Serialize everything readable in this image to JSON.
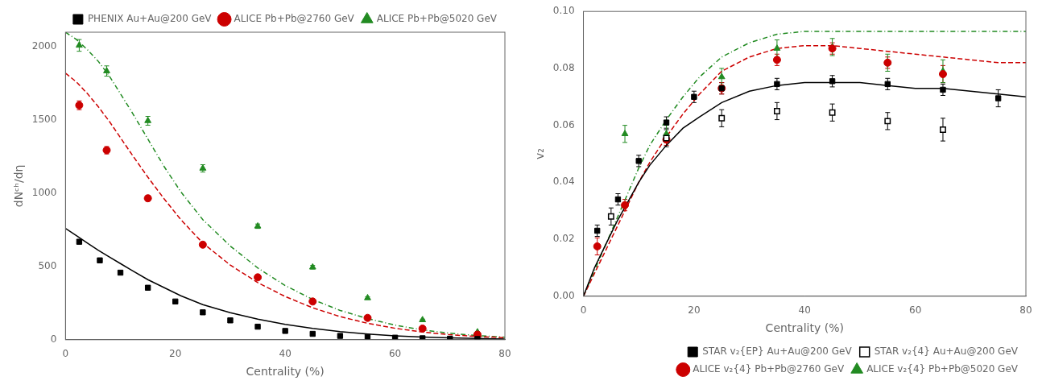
{
  "chart_data": [
    {
      "type": "scatter",
      "x_label": "Centrality (%)",
      "y_label": "dNᶜʰ/dη",
      "xlim": [
        0,
        80
      ],
      "xticks": [
        0,
        20,
        40,
        60,
        80
      ],
      "ylim": [
        0,
        2100
      ],
      "yticks": [
        0,
        500,
        1000,
        1500,
        2000
      ],
      "grid": false,
      "legend": "upper right",
      "series": [
        {
          "type": "line",
          "color": "#000000",
          "line_style": "solid",
          "x": [
            0,
            2,
            4,
            6,
            8,
            10,
            12,
            15,
            18,
            21,
            25,
            30,
            35,
            40,
            45,
            50,
            55,
            60,
            65,
            70,
            75,
            80
          ],
          "values": [
            760,
            710,
            660,
            610,
            565,
            520,
            475,
            410,
            355,
            300,
            240,
            185,
            140,
            105,
            77,
            55,
            39,
            27,
            18,
            12,
            8,
            5
          ]
        },
        {
          "type": "line",
          "color": "#cc0000",
          "line_style": "dashed",
          "x": [
            0,
            2,
            4,
            6,
            8,
            10,
            12,
            15,
            18,
            21,
            25,
            30,
            35,
            40,
            45,
            50,
            55,
            60,
            65,
            70,
            75,
            80
          ],
          "values": [
            1820,
            1760,
            1680,
            1590,
            1490,
            1380,
            1270,
            1110,
            960,
            820,
            660,
            510,
            390,
            295,
            218,
            158,
            112,
            78,
            52,
            34,
            22,
            14
          ]
        },
        {
          "type": "line",
          "color": "#228B22",
          "line_style": "dashdot",
          "x": [
            0,
            2,
            4,
            6,
            8,
            10,
            12,
            15,
            18,
            21,
            25,
            30,
            35,
            40,
            45,
            50,
            55,
            60,
            65,
            70,
            75,
            80
          ],
          "values": [
            2100,
            2050,
            1980,
            1900,
            1800,
            1680,
            1560,
            1370,
            1180,
            1010,
            820,
            640,
            490,
            370,
            275,
            200,
            144,
            100,
            67,
            44,
            28,
            17
          ]
        },
        {
          "type": "scatter",
          "name": "PHENIX Au+Au@200 GeV",
          "color": "#000000",
          "marker": "square",
          "x": [
            2.5,
            6.25,
            10,
            15,
            20,
            25,
            30,
            35,
            40,
            45,
            50,
            55,
            60,
            65,
            70,
            75
          ],
          "values": [
            669,
            542,
            458,
            355,
            261,
            187,
            132,
            89,
            60,
            40,
            26,
            19,
            14,
            10,
            7,
            5
          ],
          "errors": [
            15,
            12,
            10,
            8,
            6,
            5,
            4,
            3,
            2,
            2,
            1.5,
            1.5,
            1,
            1,
            1,
            1
          ]
        },
        {
          "type": "scatter",
          "name": "ALICE Pb+Pb@2760 GeV",
          "color": "#cc0000",
          "marker": "circle",
          "x": [
            2.5,
            7.5,
            15,
            25,
            35,
            45,
            55,
            65,
            75
          ],
          "values": [
            1601,
            1294,
            966,
            649,
            426,
            261,
            149,
            76,
            35
          ],
          "errors": [
            30,
            25,
            20,
            15,
            10,
            8,
            5,
            4,
            3
          ]
        },
        {
          "type": "scatter",
          "name": "ALICE Pb+Pb@5020 GeV",
          "color": "#228B22",
          "marker": "triangle",
          "x": [
            2.5,
            7.5,
            15,
            25,
            35,
            45,
            55,
            65,
            75
          ],
          "values": [
            2010,
            1835,
            1495,
            1170,
            775,
            495,
            285,
            135,
            52
          ],
          "errors": [
            40,
            35,
            30,
            25,
            15,
            12,
            8,
            5,
            3
          ]
        }
      ]
    },
    {
      "type": "scatter",
      "x_label": "Centrality (%)",
      "y_label": "v₂",
      "xlim": [
        0,
        80
      ],
      "xticks": [
        0,
        20,
        40,
        60,
        80
      ],
      "ylim": [
        0.0,
        0.1
      ],
      "yticks": [
        {
          "value": 0.0,
          "label": "0.00"
        },
        0.02,
        0.04,
        0.06,
        0.08,
        {
          "value": 0.1,
          "label": "0.10"
        }
      ],
      "grid": false,
      "legend": "lower right",
      "series": [
        {
          "type": "line",
          "color": "#000000",
          "line_style": "solid",
          "x": [
            0,
            2,
            4,
            6,
            8,
            10,
            12,
            15,
            18,
            21,
            25,
            30,
            35,
            40,
            45,
            50,
            55,
            60,
            65,
            70,
            75,
            80
          ],
          "values": [
            0.0,
            0.01,
            0.018,
            0.026,
            0.033,
            0.04,
            0.046,
            0.053,
            0.059,
            0.063,
            0.068,
            0.072,
            0.074,
            0.075,
            0.075,
            0.075,
            0.074,
            0.073,
            0.073,
            0.072,
            0.071,
            0.07
          ]
        },
        {
          "type": "line",
          "color": "#cc0000",
          "line_style": "dashed",
          "x": [
            0,
            2,
            4,
            6,
            8,
            10,
            12,
            15,
            18,
            21,
            25,
            30,
            35,
            40,
            45,
            50,
            55,
            60,
            65,
            70,
            75,
            80
          ],
          "values": [
            0.0,
            0.008,
            0.016,
            0.024,
            0.032,
            0.04,
            0.047,
            0.056,
            0.064,
            0.071,
            0.079,
            0.084,
            0.087,
            0.088,
            0.088,
            0.087,
            0.086,
            0.085,
            0.084,
            0.083,
            0.082,
            0.082
          ]
        },
        {
          "type": "line",
          "color": "#228B22",
          "line_style": "dashdot",
          "x": [
            0,
            2,
            4,
            6,
            8,
            10,
            12,
            15,
            18,
            21,
            25,
            30,
            35,
            40,
            45,
            50,
            55,
            60,
            65,
            70,
            75,
            80
          ],
          "values": [
            0.0,
            0.009,
            0.018,
            0.027,
            0.036,
            0.045,
            0.053,
            0.062,
            0.07,
            0.077,
            0.084,
            0.089,
            0.092,
            0.093,
            0.093,
            0.093,
            0.093,
            0.093,
            0.093,
            0.093,
            0.093,
            0.093
          ]
        },
        {
          "type": "scatter",
          "name": "STAR v₂{EP} Au+Au@200 GeV",
          "color": "#000000",
          "marker": "square",
          "x": [
            2.5,
            6.25,
            10,
            15,
            20,
            25,
            35,
            45,
            55,
            65,
            75
          ],
          "values": [
            0.023,
            0.034,
            0.0475,
            0.061,
            0.07,
            0.073,
            0.0745,
            0.0755,
            0.0745,
            0.0725,
            0.0695
          ],
          "errors": [
            0.002,
            0.002,
            0.002,
            0.002,
            0.002,
            0.002,
            0.002,
            0.002,
            0.002,
            0.002,
            0.003
          ]
        },
        {
          "type": "scatter",
          "name": "STAR v₂{4} Au+Au@200 GeV",
          "color": "#000000",
          "marker": "open_square",
          "x": [
            5,
            15,
            25,
            35,
            45,
            55,
            65
          ],
          "values": [
            0.028,
            0.0555,
            0.0625,
            0.065,
            0.0645,
            0.0615,
            0.0585
          ],
          "errors": [
            0.003,
            0.003,
            0.003,
            0.003,
            0.003,
            0.003,
            0.004
          ]
        },
        {
          "type": "scatter",
          "name": "ALICE v₂{4} Pb+Pb@2760 GeV",
          "color": "#cc0000",
          "marker": "circle",
          "x": [
            2.5,
            7.5,
            15,
            25,
            35,
            45,
            55,
            65
          ],
          "values": [
            0.0175,
            0.032,
            0.055,
            0.073,
            0.083,
            0.087,
            0.082,
            0.078
          ],
          "errors": [
            0.003,
            0.002,
            0.002,
            0.002,
            0.002,
            0.002,
            0.002,
            0.003
          ]
        },
        {
          "type": "scatter",
          "name": "ALICE v₂{4} Pb+Pb@5020 GeV",
          "color": "#228B22",
          "marker": "triangle",
          "x": [
            7.5,
            15,
            25,
            35,
            45,
            55,
            65
          ],
          "values": [
            0.057,
            0.057,
            0.077,
            0.087,
            0.0875,
            0.082,
            0.079
          ],
          "errors": [
            0.003,
            0.003,
            0.003,
            0.003,
            0.003,
            0.003,
            0.004
          ]
        }
      ]
    }
  ]
}
